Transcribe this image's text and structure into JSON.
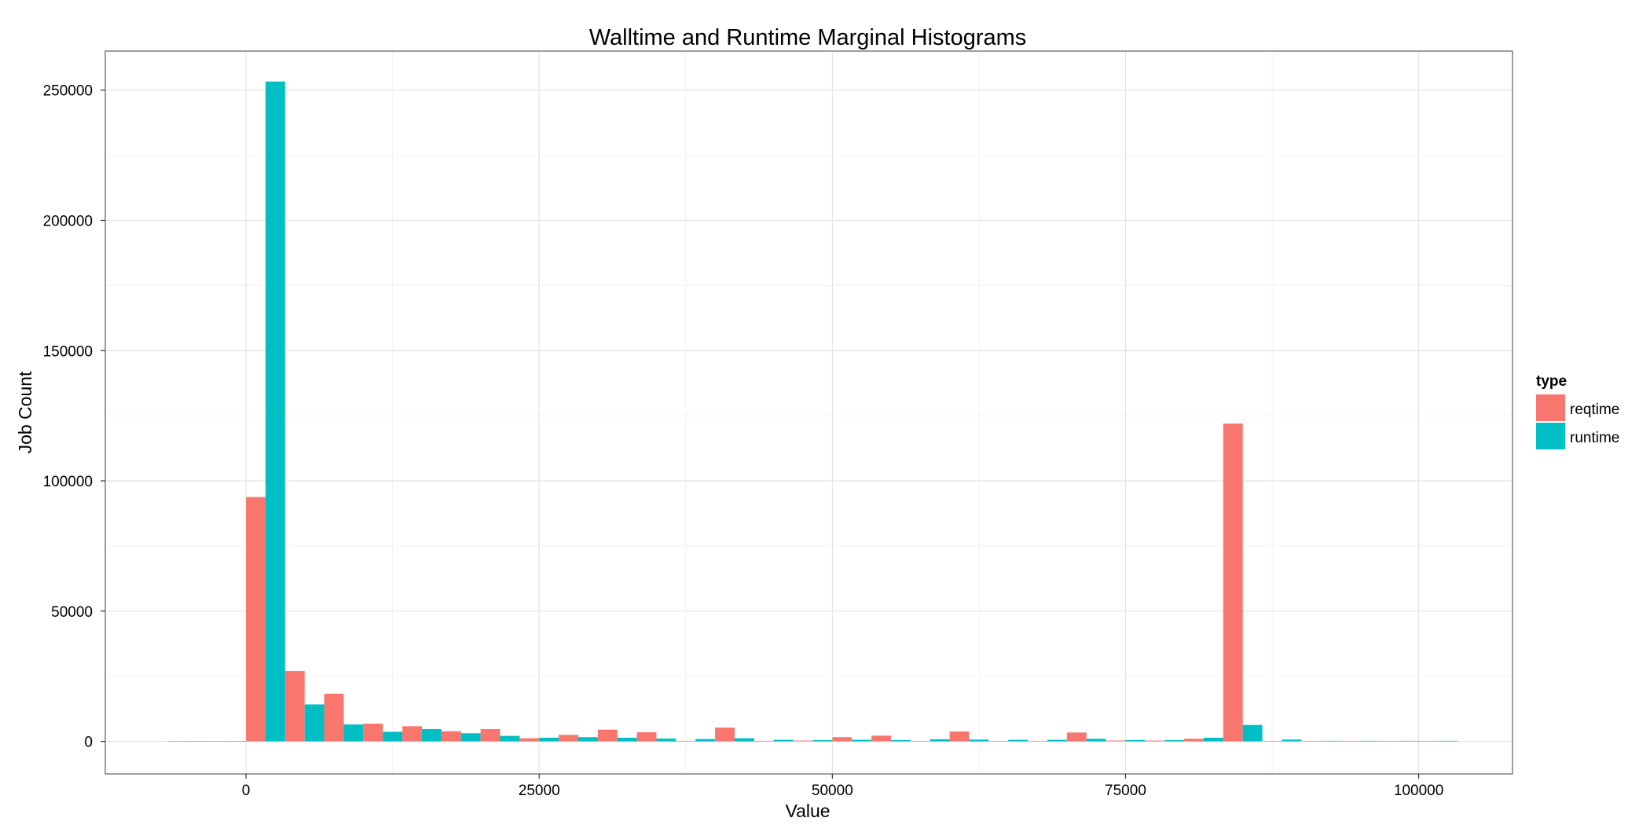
{
  "chart_data": {
    "type": "bar",
    "title": "Walltime and Runtime Marginal Histograms",
    "xlabel": "Value",
    "ylabel": "Job Count",
    "xlim": [
      -12000,
      108000
    ],
    "ylim": [
      -12500,
      265000
    ],
    "x_ticks": [
      0,
      25000,
      50000,
      75000,
      100000
    ],
    "y_ticks": [
      0,
      50000,
      100000,
      150000,
      200000,
      250000
    ],
    "grid": true,
    "legend": {
      "title": "type",
      "position": "right"
    },
    "bin_width": 3333,
    "bin_centers": [
      -5000,
      -1667,
      1667,
      5000,
      8333,
      11667,
      15000,
      18333,
      21667,
      25000,
      28333,
      31667,
      35000,
      38333,
      41667,
      45000,
      48333,
      51667,
      55000,
      58333,
      61667,
      65000,
      68333,
      71667,
      75000,
      78333,
      81667,
      85000,
      88333,
      91667,
      95000,
      98333,
      101667
    ],
    "series": [
      {
        "name": "reqtime",
        "color": "#F8766D",
        "values": [
          100,
          100,
          93800,
          27000,
          18300,
          6800,
          5800,
          3900,
          4700,
          1200,
          2500,
          4500,
          3500,
          200,
          5300,
          200,
          300,
          1600,
          2200,
          200,
          3800,
          200,
          200,
          3400,
          300,
          300,
          1000,
          122000,
          200,
          200,
          200,
          200,
          200
        ]
      },
      {
        "name": "runtime",
        "color": "#00BFC4",
        "values": [
          100,
          100,
          253300,
          14200,
          6500,
          3700,
          4700,
          3100,
          2100,
          1400,
          1600,
          1400,
          1100,
          900,
          1200,
          600,
          500,
          600,
          500,
          800,
          700,
          600,
          600,
          1000,
          500,
          500,
          1400,
          6300,
          700,
          200,
          200,
          200,
          200
        ]
      }
    ]
  }
}
